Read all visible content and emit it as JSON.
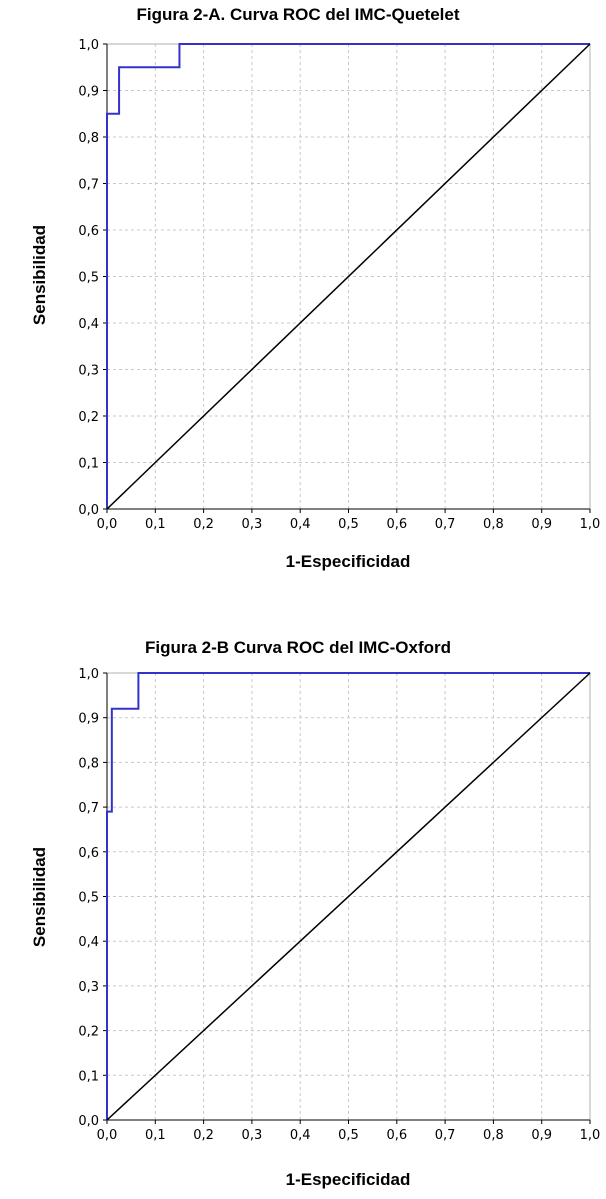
{
  "chart_data": [
    {
      "type": "line",
      "title": "Figura 2-A. Curva ROC del IMC-Quetelet",
      "xlabel": "1-Especificidad",
      "ylabel": "Sensibilidad",
      "xlim": [
        0,
        1
      ],
      "ylim": [
        0,
        1
      ],
      "x_ticks": [
        "0,0",
        "0,1",
        "0,2",
        "0,3",
        "0,4",
        "0,5",
        "0,6",
        "0,7",
        "0,8",
        "0,9",
        "1,0"
      ],
      "y_ticks": [
        "0,0",
        "0,1",
        "0,2",
        "0,3",
        "0,4",
        "0,5",
        "0,6",
        "0,7",
        "0,8",
        "0,9",
        "1,0"
      ],
      "grid": true,
      "series": [
        {
          "color": "#3333cc",
          "x": [
            0,
            0,
            0.025,
            0.025,
            0.15,
            0.15,
            1
          ],
          "y": [
            0,
            0.85,
            0.85,
            0.95,
            0.95,
            1,
            1
          ]
        },
        {
          "color": "#000000",
          "x": [
            0,
            1
          ],
          "y": [
            0,
            1
          ]
        }
      ]
    },
    {
      "type": "line",
      "title": "Figura 2-B Curva ROC del IMC-Oxford",
      "xlabel": "1-Especificidad",
      "ylabel": "Sensibilidad",
      "xlim": [
        0,
        1
      ],
      "ylim": [
        0,
        1
      ],
      "x_ticks": [
        "0,0",
        "0,1",
        "0,2",
        "0,3",
        "0,4",
        "0,5",
        "0,6",
        "0,7",
        "0,8",
        "0,9",
        "1,0"
      ],
      "y_ticks": [
        "0,0",
        "0,1",
        "0,2",
        "0,3",
        "0,4",
        "0,5",
        "0,6",
        "0,7",
        "0,8",
        "0,9",
        "1,0"
      ],
      "grid": true,
      "series": [
        {
          "color": "#3333cc",
          "x": [
            0,
            0,
            0.01,
            0.01,
            0.065,
            0.065,
            1
          ],
          "y": [
            0,
            0.69,
            0.69,
            0.92,
            0.92,
            1,
            1
          ]
        },
        {
          "color": "#000000",
          "x": [
            0,
            1
          ],
          "y": [
            0,
            1
          ]
        }
      ]
    }
  ]
}
